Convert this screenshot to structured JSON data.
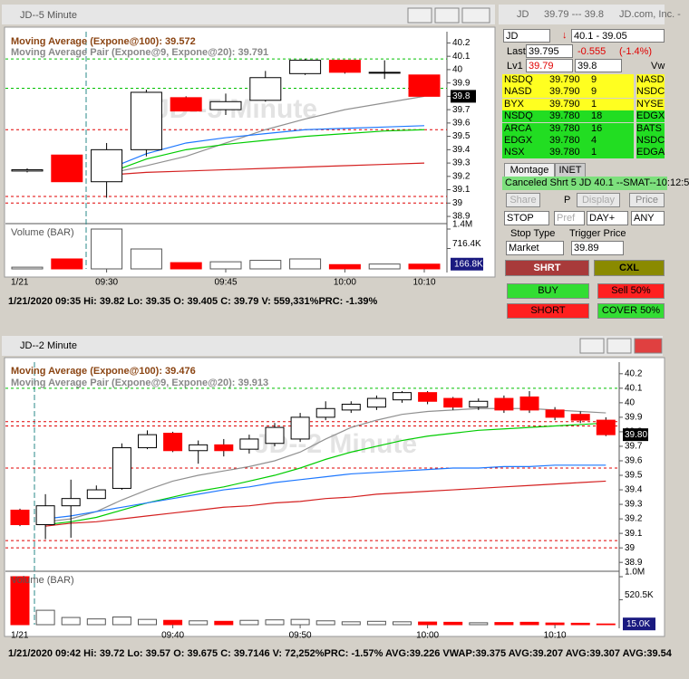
{
  "chart_data": [
    {
      "type": "candlestick",
      "window_title": "JD--5 Minute",
      "watermark": "JD--5 Minute",
      "ma_label": "Moving Average (Expone@100): 39.572",
      "pair_label": "Moving Average Pair (Expone@9, Expone@20): 39.791",
      "volume_title": "Volume (BAR)",
      "date_label": "1/21",
      "price_tag": "39.8",
      "footer": "1/21/2020 09:35  Hi: 39.82  Lo: 39.35  O: 39.405  C: 39.79  V: 559,331%PRC: -1.39%",
      "categories": [
        null,
        null,
        "09:30",
        null,
        null,
        "09:45",
        null,
        null,
        "10:00",
        null,
        "10:10"
      ],
      "open": [
        39.24,
        39.36,
        39.16,
        39.4,
        39.79,
        39.7,
        39.77,
        39.97,
        40.07,
        39.98,
        39.96
      ],
      "high": [
        39.26,
        39.36,
        39.45,
        39.85,
        39.8,
        39.82,
        39.99,
        40.08,
        40.07,
        40.07,
        39.96
      ],
      "low": [
        39.23,
        39.16,
        39.04,
        39.35,
        39.69,
        39.66,
        39.76,
        39.96,
        39.97,
        39.93,
        39.8
      ],
      "close": [
        39.25,
        39.16,
        39.4,
        39.83,
        39.69,
        39.76,
        39.94,
        40.07,
        39.98,
        39.98,
        39.8
      ],
      "up_color": "#ffffff",
      "down_color": "#ff0000",
      "lines": [
        {
          "color": "#909090",
          "values": [
            null,
            null,
            39.22,
            39.28,
            39.35,
            39.45,
            39.55,
            39.63,
            39.7,
            39.75,
            39.8
          ]
        },
        {
          "color": "#1e78ff",
          "values": [
            null,
            null,
            39.25,
            39.37,
            39.45,
            39.49,
            39.52,
            39.55,
            39.56,
            39.57,
            39.58
          ]
        },
        {
          "color": "#00cc00",
          "values": [
            null,
            null,
            39.22,
            39.33,
            39.4,
            39.44,
            39.47,
            39.5,
            39.52,
            39.54,
            39.55
          ]
        },
        {
          "color": "#d42020",
          "values": [
            null,
            null,
            39.21,
            39.23,
            39.24,
            39.25,
            39.26,
            39.27,
            39.28,
            39.29,
            39.3
          ]
        }
      ],
      "levels": [
        {
          "value": 40.08,
          "color": "#00c000"
        },
        {
          "value": 39.86,
          "color": "#00c000"
        },
        {
          "value": 39.55,
          "color": "#e00000"
        },
        {
          "value": 39.05,
          "color": "#e00000"
        },
        {
          "value": 39.0,
          "color": "#e00000"
        }
      ],
      "ylim": [
        38.88,
        40.23
      ],
      "yticks": [
        40.2,
        40.1,
        40,
        39.9,
        39.8,
        39.7,
        39.6,
        39.5,
        39.4,
        39.3,
        39.2,
        39.1,
        39,
        38.9
      ],
      "volume": [
        60000,
        350000,
        1400000,
        700000,
        220000,
        250000,
        300000,
        350000,
        150000,
        170000,
        166800
      ],
      "volume_lim": [
        0,
        1400000
      ],
      "volume_ticks": [
        {
          "value": 1400000,
          "label": "1.4M"
        },
        {
          "value": 716400,
          "label": "716.4K"
        }
      ],
      "current_volume": {
        "value": 166800,
        "label": "166.8K"
      }
    },
    {
      "type": "candlestick",
      "window_title": "JD--2 Minute",
      "watermark": "JD--2 Minute",
      "ma_label": "Moving Average (Expone@100): 39.476",
      "pair_label": "Moving Average Pair (Expone@9, Expone@20): 39.913",
      "volume_title": "Volume (BAR)",
      "date_label": "1/21",
      "price_tag": "39.80",
      "footer": "1/21/2020 09:42  Hi: 39.72  Lo: 39.57  O: 39.675  C: 39.7146  V: 72,252%PRC: -1.57%  AVG:39.226  VWAP:39.375  AVG:39.207  AVG:39.307  AVG:39.54",
      "categories": [
        null,
        null,
        null,
        null,
        null,
        null,
        "09:40",
        null,
        null,
        null,
        null,
        "09:50",
        null,
        null,
        null,
        null,
        "10:00",
        null,
        null,
        null,
        null,
        "10:10",
        null,
        null
      ],
      "open": [
        39.26,
        39.16,
        39.29,
        39.34,
        39.41,
        39.69,
        39.79,
        39.67,
        39.71,
        39.68,
        39.72,
        39.75,
        39.9,
        39.95,
        39.97,
        40.02,
        40.07,
        40.03,
        39.97,
        40.03,
        40.04,
        39.95,
        39.92,
        39.88
      ],
      "high": [
        39.27,
        39.37,
        39.47,
        39.43,
        39.72,
        39.81,
        39.8,
        39.74,
        39.75,
        39.78,
        39.86,
        39.93,
        40.01,
        40.01,
        40.05,
        40.08,
        40.08,
        40.04,
        40.03,
        40.05,
        40.08,
        39.97,
        39.94,
        39.9
      ],
      "low": [
        39.15,
        39.06,
        39.07,
        39.34,
        39.4,
        39.68,
        39.66,
        39.58,
        39.63,
        39.65,
        39.7,
        39.73,
        39.88,
        39.93,
        39.95,
        40.0,
        39.99,
        39.95,
        39.95,
        39.93,
        39.93,
        39.88,
        39.86,
        39.77
      ],
      "close": [
        39.16,
        39.29,
        39.34,
        39.4,
        39.69,
        39.78,
        39.67,
        39.71,
        39.67,
        39.75,
        39.83,
        39.9,
        39.96,
        39.99,
        40.03,
        40.07,
        40.01,
        39.97,
        40.01,
        39.95,
        39.95,
        39.9,
        39.88,
        39.78
      ],
      "up_color": "#ffffff",
      "down_color": "#ff0000",
      "lines": [
        {
          "color": "#909090",
          "values": [
            null,
            39.18,
            39.2,
            39.25,
            39.33,
            39.4,
            39.46,
            39.5,
            39.53,
            39.56,
            39.6,
            39.66,
            39.75,
            39.83,
            39.88,
            39.92,
            39.94,
            39.95,
            39.96,
            39.96,
            39.96,
            39.95,
            39.94,
            39.93
          ]
        },
        {
          "color": "#00cc00",
          "values": [
            null,
            39.16,
            39.18,
            39.21,
            39.26,
            39.31,
            39.35,
            39.39,
            39.42,
            39.46,
            39.5,
            39.55,
            39.61,
            39.66,
            39.7,
            39.74,
            39.77,
            39.79,
            39.81,
            39.82,
            39.83,
            39.84,
            39.85,
            39.86
          ]
        },
        {
          "color": "#1e78ff",
          "values": [
            null,
            39.2,
            39.22,
            39.25,
            39.28,
            39.31,
            39.34,
            39.37,
            39.4,
            39.42,
            39.45,
            39.47,
            39.49,
            39.51,
            39.52,
            39.53,
            39.54,
            39.55,
            39.55,
            39.56,
            39.56,
            39.57,
            39.57,
            39.57
          ]
        },
        {
          "color": "#d42020",
          "values": [
            null,
            39.15,
            39.17,
            39.18,
            39.2,
            39.22,
            39.24,
            39.26,
            39.28,
            39.29,
            39.31,
            39.32,
            39.34,
            39.35,
            39.37,
            39.38,
            39.39,
            39.4,
            39.41,
            39.42,
            39.43,
            39.44,
            39.45,
            39.46
          ]
        }
      ],
      "levels": [
        {
          "value": 40.1,
          "color": "#00c000"
        },
        {
          "value": 39.87,
          "color": "#e00000"
        },
        {
          "value": 39.84,
          "color": "#e00000"
        },
        {
          "value": 39.55,
          "color": "#e00000"
        },
        {
          "value": 39.05,
          "color": "#e00000"
        },
        {
          "value": 39.0,
          "color": "#e00000"
        }
      ],
      "ylim": [
        38.87,
        40.23
      ],
      "yticks": [
        40.2,
        40.1,
        40,
        39.9,
        39.8,
        39.7,
        39.6,
        39.5,
        39.4,
        39.3,
        39.2,
        39.1,
        39,
        38.9
      ],
      "volume": [
        1000000,
        300000,
        150000,
        120000,
        160000,
        110000,
        90000,
        80000,
        70000,
        90000,
        100000,
        110000,
        80000,
        60000,
        70000,
        60000,
        55000,
        50000,
        40000,
        45000,
        50000,
        35000,
        30000,
        15000
      ],
      "volume_lim": [
        0,
        1000000
      ],
      "volume_ticks": [
        {
          "value": 1000000,
          "label": "1.0M"
        },
        {
          "value": 520500,
          "label": "520.5K"
        }
      ],
      "current_volume": {
        "value": 15000,
        "label": "15.0K"
      }
    }
  ],
  "montage": {
    "title": "JD",
    "title_quote": "39.79 --- 39.8",
    "company": "JD.com, Inc. -",
    "symbol": "JD",
    "range": "40.1 - 39.05",
    "last_label": "Last",
    "last": "39.795",
    "change": "-0.555",
    "change_pct": "(-1.4%)",
    "lv1_label": "Lv1",
    "bid": "39.79",
    "ask": "39.8",
    "vwap_label": "Vw",
    "bids": [
      [
        "NSDQ",
        "39.790",
        "9"
      ],
      [
        "NASD",
        "39.790",
        "9"
      ],
      [
        "BYX",
        "39.790",
        "1"
      ],
      [
        "NSDQ",
        "39.780",
        "18"
      ],
      [
        "ARCA",
        "39.780",
        "16"
      ],
      [
        "EDGX",
        "39.780",
        "4"
      ],
      [
        "NSX",
        "39.780",
        "1"
      ]
    ],
    "asks": [
      "NASD",
      "NSDC",
      "NYSE",
      "EDGX",
      "BATS",
      "NSDC",
      "EDGA"
    ],
    "tabs": [
      "Montage",
      "INET"
    ],
    "status": "Canceled Shrt 5 JD 40.1 --SMAT--10:12:5",
    "share": "Share",
    "p": "P",
    "display": "Display",
    "price": "Price",
    "stop": "STOP",
    "pref": "Pref",
    "tif": "DAY+",
    "route": "ANY",
    "stop_type_label": "Stop Type",
    "trigger_label": "Trigger Price",
    "stop_type": "Market",
    "trigger": "39.89",
    "shrt": "SHRT",
    "cxl": "CXL",
    "buy": "BUY",
    "sell50": "Sell 50%",
    "short": "SHORT",
    "cover50": "COVER 50%"
  }
}
